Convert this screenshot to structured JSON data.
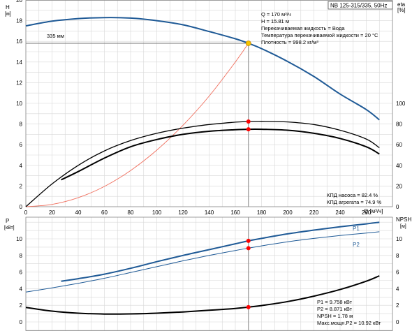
{
  "colors": {
    "blue": "#1f5a96",
    "black": "#000000",
    "red_curve": "#f06f5e",
    "grid": "#d7d7d7",
    "marker_red": "#ff0000",
    "marker_yellow": "#f5c400"
  },
  "chart_data": [
    {
      "type": "line",
      "title": "NB 125-315/335, 50Hz",
      "xlabel": "Q [м³/ч]",
      "x_ticks": [
        "0",
        "20",
        "40",
        "60",
        "80",
        "100",
        "120",
        "140",
        "160",
        "180",
        "200",
        "220",
        "240",
        "260"
      ],
      "xlim": [
        0,
        280
      ],
      "left_axis": {
        "name": "H",
        "unit": "[м]",
        "ylim": [
          0,
          20
        ],
        "ticks": [
          "0",
          "2",
          "4",
          "6",
          "8",
          "10",
          "12",
          "14",
          "16",
          "18",
          "20"
        ]
      },
      "right_axis": {
        "name": "eta",
        "unit": "[%]",
        "ylim": [
          0,
          100
        ],
        "ticks": [
          "0",
          "20",
          "40",
          "60",
          "80",
          "100"
        ]
      },
      "series": [
        {
          "name": "335 мм",
          "axis": "left",
          "color": "#1f5a96",
          "points": [
            [
              0,
              17.5
            ],
            [
              20,
              17.95
            ],
            [
              40,
              18.2
            ],
            [
              60,
              18.3
            ],
            [
              80,
              18.25
            ],
            [
              100,
              18.0
            ],
            [
              120,
              17.6
            ],
            [
              140,
              16.95
            ],
            [
              160,
              16.25
            ],
            [
              170,
              15.81
            ],
            [
              180,
              15.3
            ],
            [
              200,
              14.05
            ],
            [
              220,
              12.6
            ],
            [
              240,
              10.9
            ],
            [
              260,
              9.4
            ],
            [
              270,
              8.4
            ]
          ]
        },
        {
          "name": "",
          "axis": "left",
          "color": "#f06f5e",
          "points": [
            [
              0,
              0
            ],
            [
              20,
              0.22
            ],
            [
              40,
              0.87
            ],
            [
              60,
              1.96
            ],
            [
              80,
              3.5
            ],
            [
              100,
              5.47
            ],
            [
              120,
              7.88
            ],
            [
              140,
              10.7
            ],
            [
              160,
              14.0
            ],
            [
              170,
              15.81
            ]
          ]
        },
        {
          "name": "КПД насоса",
          "axis": "right",
          "color": "#000000",
          "points": [
            [
              0,
              0
            ],
            [
              20,
              22
            ],
            [
              40,
              40
            ],
            [
              60,
              54
            ],
            [
              80,
              64
            ],
            [
              100,
              71
            ],
            [
              120,
              76
            ],
            [
              140,
              79.5
            ],
            [
              160,
              81.8
            ],
            [
              170,
              82.4
            ],
            [
              180,
              82.6
            ],
            [
              200,
              82
            ],
            [
              220,
              79.5
            ],
            [
              240,
              74
            ],
            [
              260,
              65.5
            ],
            [
              270,
              57
            ]
          ]
        },
        {
          "name": "КПД агрегата",
          "axis": "right",
          "color": "#000000",
          "points": [
            [
              27,
              26
            ],
            [
              40,
              34
            ],
            [
              60,
              47
            ],
            [
              80,
              58
            ],
            [
              100,
              65
            ],
            [
              120,
              70
            ],
            [
              140,
              73
            ],
            [
              160,
              74.5
            ],
            [
              170,
              74.9
            ],
            [
              180,
              74.9
            ],
            [
              200,
              74
            ],
            [
              220,
              71
            ],
            [
              240,
              66
            ],
            [
              260,
              58
            ],
            [
              270,
              51
            ]
          ]
        }
      ],
      "duty_line": {
        "q": 170,
        "h": 15.81
      },
      "markers": [
        {
          "x": 170,
          "y": 15.81,
          "axis": "left",
          "color": "#f5c400"
        },
        {
          "x": 170,
          "y": 82.4,
          "axis": "right",
          "color": "#ff0000"
        },
        {
          "x": 170,
          "y": 74.9,
          "axis": "right",
          "color": "#ff0000"
        }
      ],
      "annotations": [
        "Q = 170 м³/ч",
        "H = 15.81 м",
        "Перекачиваемая жидкость = Вода",
        "Температура перекачиваемой жидкости = 20 °C",
        "Плотность = 998.2 кг/м³"
      ],
      "eff_annotations": [
        "КПД насоса = 82.4 %",
        "КПД агрегата = 74.9 %"
      ],
      "grid": true
    },
    {
      "type": "line",
      "xlim": [
        0,
        280
      ],
      "left_axis": {
        "name": "P",
        "unit": "[кВт]",
        "ylim": [
          0,
          12
        ],
        "ticks": [
          "0",
          "2",
          "4",
          "6",
          "8",
          "10"
        ]
      },
      "right_axis": {
        "name": "NPSH",
        "unit": "[м]",
        "ylim": [
          0,
          12
        ],
        "ticks": [
          "0",
          "2",
          "4",
          "6",
          "8",
          "10"
        ]
      },
      "series": [
        {
          "name": "P1",
          "axis": "left",
          "color": "#1f5a96",
          "points": [
            [
              27,
              4.9
            ],
            [
              40,
              5.2
            ],
            [
              60,
              5.75
            ],
            [
              80,
              6.45
            ],
            [
              100,
              7.25
            ],
            [
              120,
              8.0
            ],
            [
              140,
              8.7
            ],
            [
              160,
              9.4
            ],
            [
              170,
              9.758
            ],
            [
              180,
              10.05
            ],
            [
              200,
              10.6
            ],
            [
              220,
              11.05
            ],
            [
              240,
              11.45
            ],
            [
              260,
              11.8
            ],
            [
              270,
              12.0
            ]
          ]
        },
        {
          "name": "P2",
          "axis": "left",
          "color": "#1f5a96",
          "points": [
            [
              0,
              3.6
            ],
            [
              20,
              4.1
            ],
            [
              40,
              4.65
            ],
            [
              60,
              5.25
            ],
            [
              80,
              5.95
            ],
            [
              100,
              6.65
            ],
            [
              120,
              7.35
            ],
            [
              140,
              8.0
            ],
            [
              160,
              8.6
            ],
            [
              170,
              8.871
            ],
            [
              180,
              9.15
            ],
            [
              200,
              9.65
            ],
            [
              220,
              10.05
            ],
            [
              240,
              10.4
            ],
            [
              260,
              10.7
            ],
            [
              270,
              10.85
            ]
          ]
        },
        {
          "name": "NPSH",
          "axis": "right",
          "color": "#000000",
          "points": [
            [
              0,
              1.75
            ],
            [
              20,
              1.3
            ],
            [
              40,
              1.05
            ],
            [
              60,
              0.95
            ],
            [
              80,
              0.97
            ],
            [
              100,
              1.05
            ],
            [
              120,
              1.2
            ],
            [
              140,
              1.4
            ],
            [
              160,
              1.62
            ],
            [
              170,
              1.78
            ],
            [
              180,
              1.97
            ],
            [
              200,
              2.45
            ],
            [
              220,
              3.1
            ],
            [
              240,
              3.9
            ],
            [
              260,
              4.9
            ],
            [
              270,
              5.55
            ]
          ]
        }
      ],
      "markers": [
        {
          "x": 170,
          "y": 9.758,
          "axis": "left",
          "color": "#ff0000"
        },
        {
          "x": 170,
          "y": 8.871,
          "axis": "left",
          "color": "#ff0000"
        },
        {
          "x": 170,
          "y": 1.78,
          "axis": "right",
          "color": "#ff0000"
        }
      ],
      "annotations": [
        "P1 = 9.758 кВт",
        "P2 = 8.871 кВт",
        "NPSH = 1.78 м",
        "Макс.мощн.P2 = 10.92 кВт"
      ],
      "grid": true
    }
  ]
}
